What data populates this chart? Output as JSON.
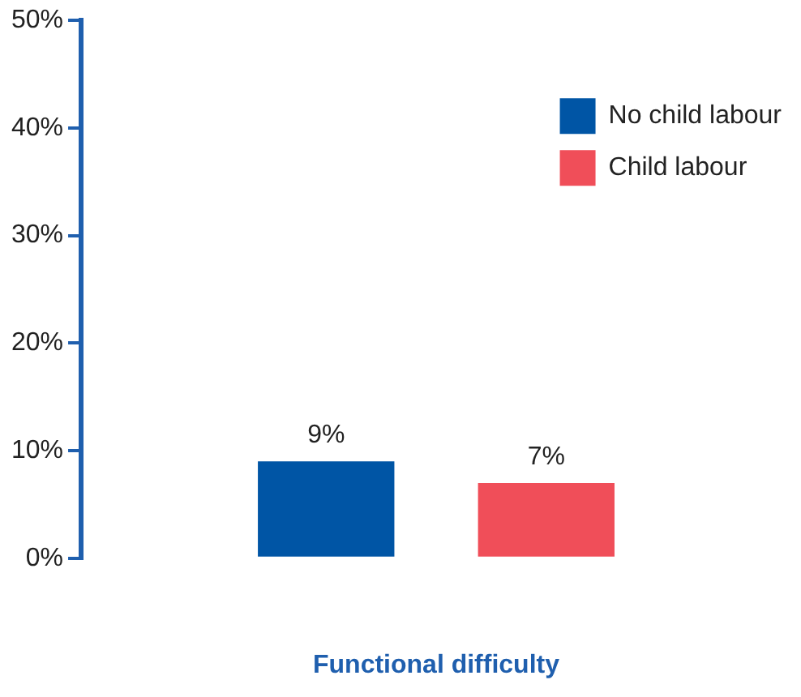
{
  "chart_data": {
    "type": "bar",
    "xlabel": "Functional difficulty",
    "categories": [
      null
    ],
    "series": [
      {
        "name": "No child labour",
        "color": "#0055a5",
        "values": [
          9
        ],
        "value_labels": [
          "9%"
        ]
      },
      {
        "name": "Child labour",
        "color": "#f04e59",
        "values": [
          7
        ],
        "value_labels": [
          "7%"
        ]
      }
    ],
    "ylim": [
      0,
      50
    ],
    "yticks": [
      {
        "value": 0,
        "label": "0%"
      },
      {
        "value": 10,
        "label": "10%"
      },
      {
        "value": 20,
        "label": "20%"
      },
      {
        "value": 30,
        "label": "30%"
      },
      {
        "value": 40,
        "label": "40%"
      },
      {
        "value": 50,
        "label": "50%"
      }
    ],
    "grid": false,
    "legend": "top right"
  }
}
